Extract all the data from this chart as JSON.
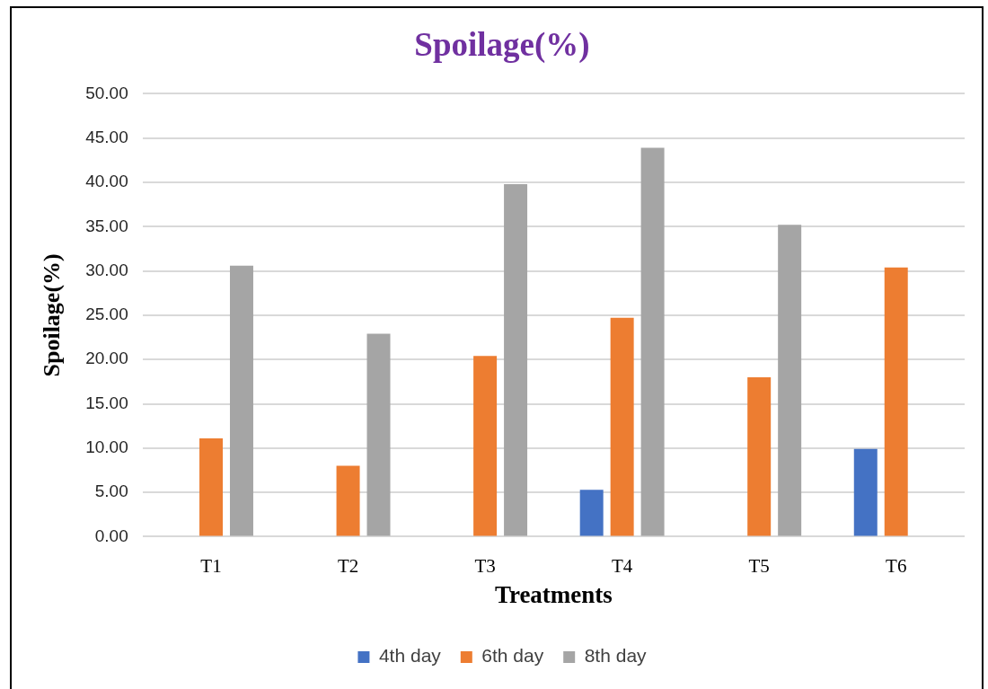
{
  "chart_data": {
    "type": "bar",
    "title": "Spoilage(%)",
    "xlabel": "Treatments",
    "ylabel": "Spoilage(%)",
    "categories": [
      "T1",
      "T2",
      "T3",
      "T4",
      "T5",
      "T6"
    ],
    "series": [
      {
        "name": "4th day",
        "color": "#4472c4",
        "values": [
          0,
          0,
          0,
          5.3,
          0,
          9.9
        ]
      },
      {
        "name": "6th day",
        "color": "#ed7d31",
        "values": [
          11.1,
          8.0,
          20.4,
          24.7,
          18.0,
          30.4
        ]
      },
      {
        "name": "8th day",
        "color": "#a5a5a5",
        "values": [
          30.6,
          22.9,
          39.8,
          43.9,
          35.2,
          0
        ]
      }
    ],
    "ylim": [
      0,
      50
    ],
    "yticks": [
      {
        "value": 0,
        "label": "0.00"
      },
      {
        "value": 5,
        "label": "5.00"
      },
      {
        "value": 10,
        "label": "10.00"
      },
      {
        "value": 15,
        "label": "15.00"
      },
      {
        "value": 20,
        "label": "20.00"
      },
      {
        "value": 25,
        "label": "25.00"
      },
      {
        "value": 30,
        "label": "30.00"
      },
      {
        "value": 35,
        "label": "35.00"
      },
      {
        "value": 40,
        "label": "40.00"
      },
      {
        "value": 45,
        "label": "45.00"
      },
      {
        "value": 50,
        "label": "50.00"
      }
    ],
    "grid": "y",
    "legend": "bottom"
  }
}
